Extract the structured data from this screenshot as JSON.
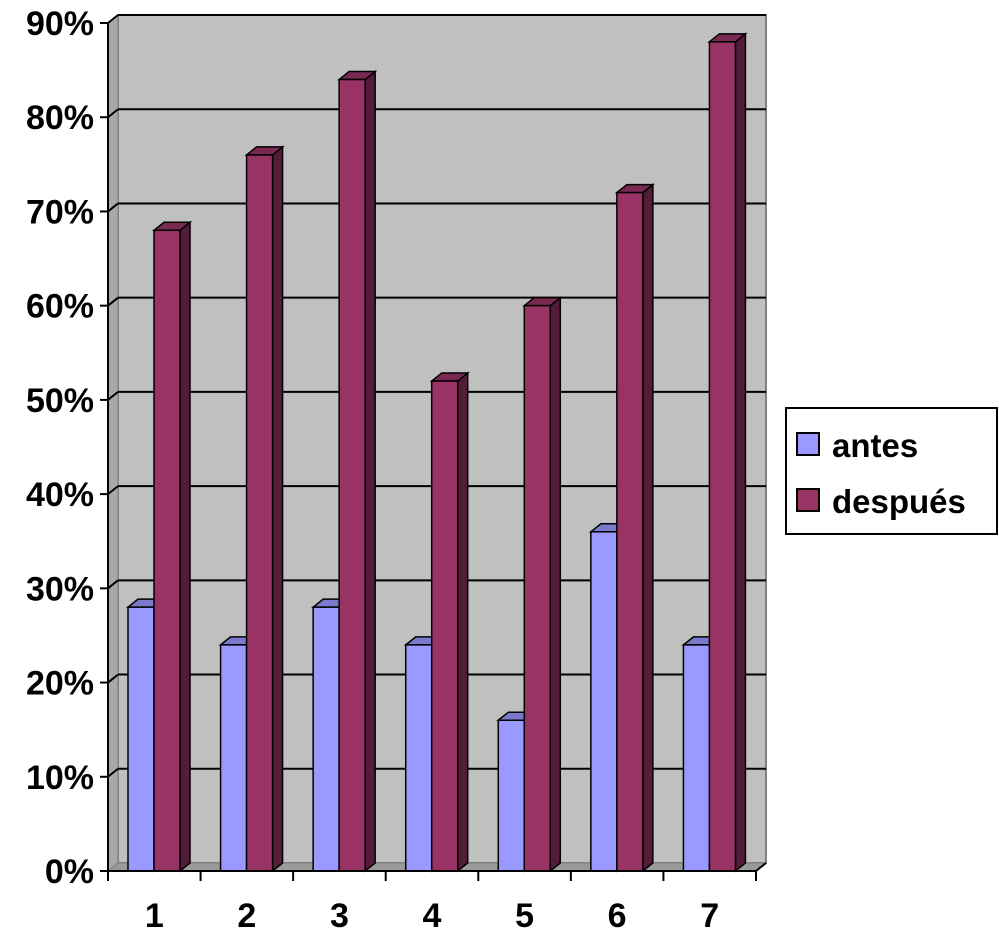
{
  "chart_data": {
    "type": "bar",
    "categories": [
      "1",
      "2",
      "3",
      "4",
      "5",
      "6",
      "7"
    ],
    "series": [
      {
        "name": "antes",
        "values": [
          28,
          24,
          28,
          24,
          16,
          36,
          24
        ],
        "color": "#9999ff"
      },
      {
        "name": "después",
        "values": [
          68,
          76,
          84,
          52,
          60,
          72,
          88
        ],
        "color": "#993366"
      }
    ],
    "y_ticks": [
      "0%",
      "10%",
      "20%",
      "30%",
      "40%",
      "50%",
      "60%",
      "70%",
      "80%",
      "90%"
    ],
    "ylim": [
      0,
      90
    ],
    "unit": "%",
    "grid": true,
    "three_d": true,
    "legend_position": "right",
    "plot_background": "#c0c0c0",
    "title": "",
    "xlabel": "",
    "ylabel": ""
  }
}
